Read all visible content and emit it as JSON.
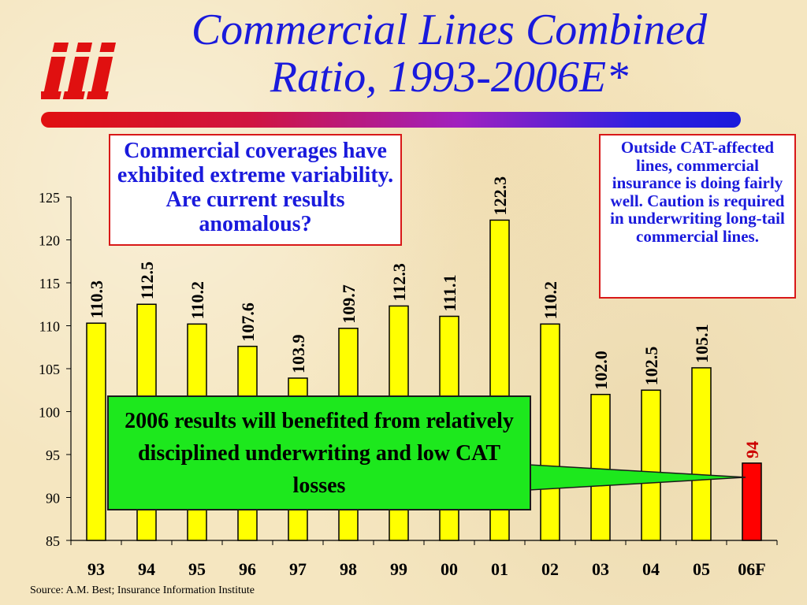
{
  "title": {
    "line1": "Commercial Lines Combined",
    "line2": "Ratio, 1993-2006E*"
  },
  "logo": {
    "text": "iii",
    "icon": "iii-logo-icon",
    "color": "#e01010"
  },
  "callouts": {
    "left": "Commercial coverages have exhibited extreme variability.  Are current results anomalous?",
    "right": "Outside CAT-affected lines, commercial insurance is doing fairly well. Caution is required in underwriting long-tail commercial lines.",
    "green": "2006 results will benefited from relatively disciplined underwriting and low CAT losses"
  },
  "source": "Source: A.M. Best; Insurance Information Institute",
  "colors": {
    "bar": "#ffff00",
    "highlight_bar": "#ff0000",
    "title": "#1a1adc",
    "callout_border": "#d81818",
    "green_box": "#1de81d"
  },
  "chart_data": {
    "type": "bar",
    "title": "Commercial Lines Combined Ratio, 1993-2006E*",
    "xlabel": "",
    "ylabel": "",
    "categories": [
      "93",
      "94",
      "95",
      "96",
      "97",
      "98",
      "99",
      "00",
      "01",
      "02",
      "03",
      "04",
      "05",
      "06F"
    ],
    "values": [
      110.3,
      112.5,
      110.2,
      107.6,
      103.9,
      109.7,
      112.3,
      111.1,
      122.3,
      110.2,
      102.0,
      102.5,
      105.1,
      94
    ],
    "data_labels": [
      "110.3",
      "112.5",
      "110.2",
      "107.6",
      "103.9",
      "109.7",
      "112.3",
      "111.1",
      "122.3",
      "110.2",
      "102.0",
      "102.5",
      "105.1",
      "94"
    ],
    "highlight_index": 13,
    "ylim": [
      85,
      125
    ],
    "yticks": [
      "85",
      "90",
      "95",
      "100",
      "105",
      "110",
      "115",
      "120",
      "125"
    ],
    "grid": false,
    "legend": "none"
  }
}
